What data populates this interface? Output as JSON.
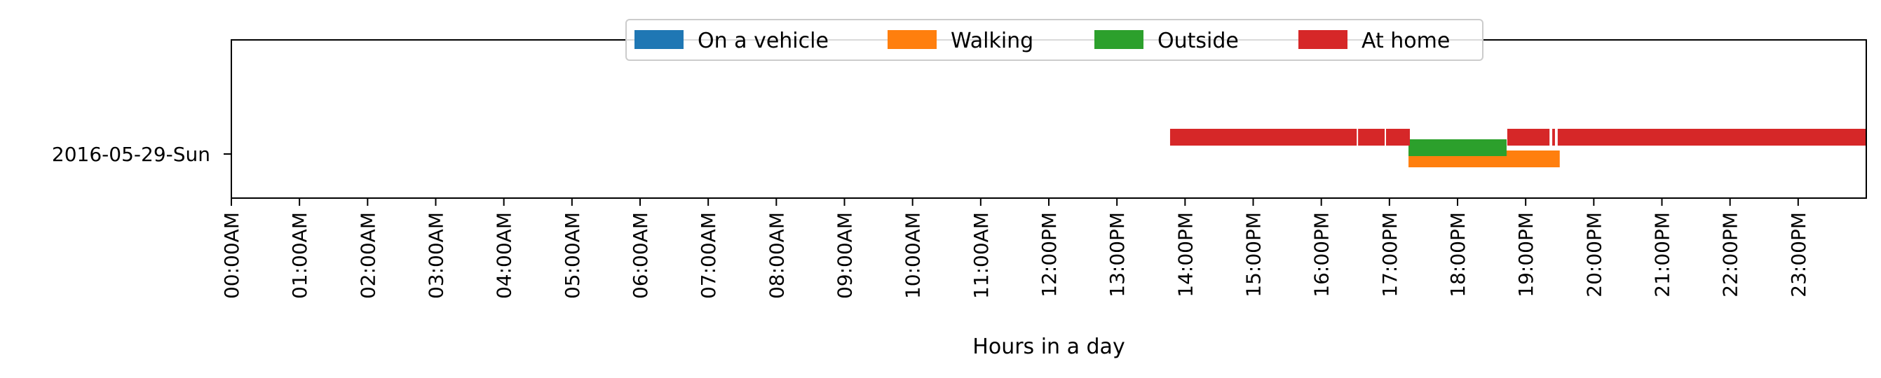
{
  "chart_data": {
    "type": "timeline",
    "xlabel": "Hours in a day",
    "xlim": [
      0,
      24
    ],
    "x_ticks": [
      "00:00AM",
      "01:00AM",
      "02:00AM",
      "03:00AM",
      "04:00AM",
      "05:00AM",
      "06:00AM",
      "07:00AM",
      "08:00AM",
      "09:00AM",
      "10:00AM",
      "11:00AM",
      "12:00PM",
      "13:00PM",
      "14:00PM",
      "15:00PM",
      "16:00PM",
      "17:00PM",
      "18:00PM",
      "19:00PM",
      "20:00PM",
      "21:00PM",
      "22:00PM",
      "23:00PM"
    ],
    "categories": [
      "2016-05-29-Sun"
    ],
    "legend_position": "top-center",
    "grid": false,
    "series": [
      {
        "name": "On a vehicle",
        "color": "#1f77b4",
        "intervals": []
      },
      {
        "name": "Walking",
        "color": "#ff7f0e",
        "intervals": [
          [
            17.28,
            19.5
          ]
        ]
      },
      {
        "name": "Outside",
        "color": "#2ca02c",
        "intervals": [
          [
            17.28,
            18.72
          ]
        ]
      },
      {
        "name": "At home",
        "color": "#d62728",
        "intervals": [
          [
            13.78,
            16.52
          ],
          [
            16.54,
            16.93
          ],
          [
            16.95,
            17.3
          ],
          [
            18.73,
            19.35
          ],
          [
            19.39,
            19.43
          ],
          [
            19.47,
            24.0
          ]
        ]
      }
    ]
  }
}
